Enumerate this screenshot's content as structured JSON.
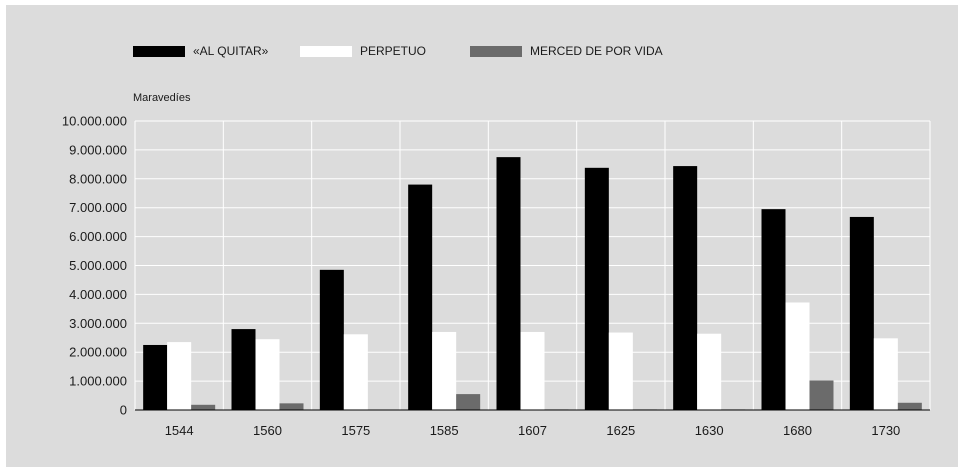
{
  "chart_data": {
    "type": "bar",
    "categories": [
      "1544",
      "1560",
      "1575",
      "1585",
      "1607",
      "1625",
      "1630",
      "1680",
      "1730"
    ],
    "series": [
      {
        "name": "«AL QUITAR»",
        "color": "#000000",
        "values": [
          2250000,
          2800000,
          4850000,
          7800000,
          8750000,
          8380000,
          8440000,
          6950000,
          6680000
        ]
      },
      {
        "name": "PERPETUO",
        "color": "#ffffff",
        "values": [
          2350000,
          2450000,
          2620000,
          2700000,
          2700000,
          2680000,
          2640000,
          3720000,
          2480000
        ]
      },
      {
        "name": "MERCED DE POR VIDA",
        "color": "#6b6b6b",
        "values": [
          180000,
          230000,
          0,
          550000,
          20000,
          20000,
          20000,
          1020000,
          250000
        ]
      }
    ],
    "ylabel": "Maravedíes",
    "ylim": [
      0,
      10000000
    ],
    "y_ticks": [
      0,
      1000000,
      2000000,
      3000000,
      4000000,
      5000000,
      6000000,
      7000000,
      8000000,
      9000000,
      10000000
    ],
    "y_tick_labels": [
      "0",
      "1.000.000",
      "2.000.000",
      "3.000.000",
      "4.000.000",
      "5.000.000",
      "6.000.000",
      "7.000.000",
      "8.000.000",
      "9.000.000",
      "10.000.000"
    ],
    "grid": true,
    "legend_position": "top-left"
  }
}
